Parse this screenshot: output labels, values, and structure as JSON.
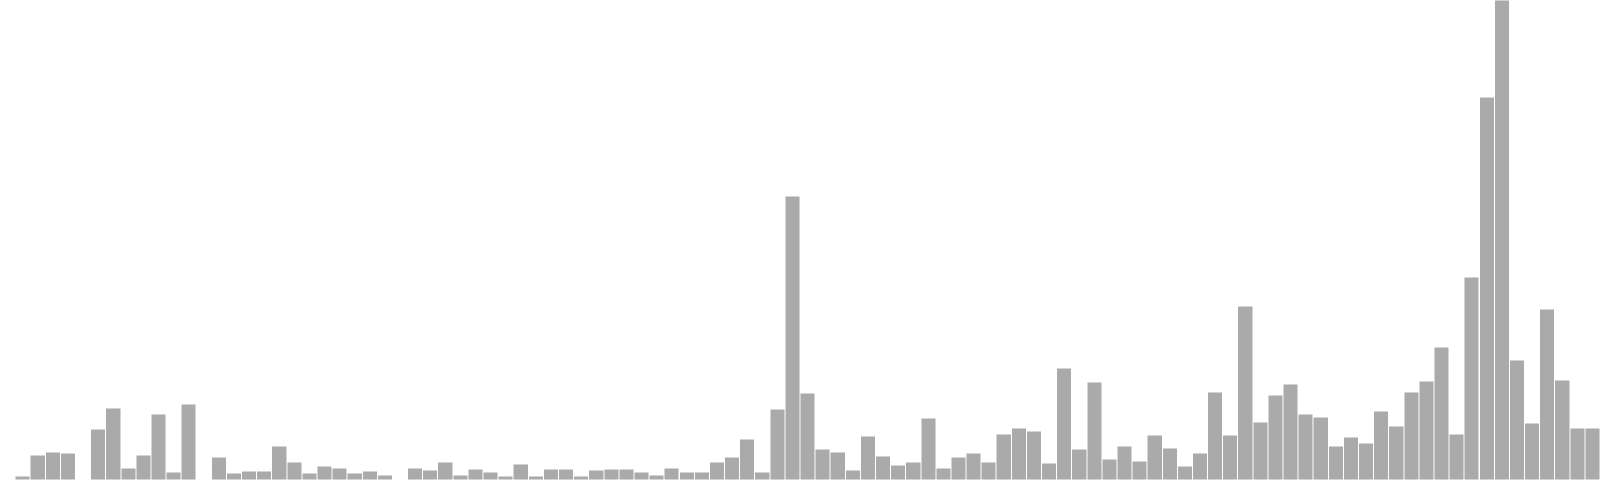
{
  "chart_data": {
    "type": "bar",
    "title": "",
    "xlabel": "",
    "ylabel": "",
    "axes_visible": false,
    "grid": false,
    "legend": "none",
    "bar_color": "#aaaaaa",
    "bar_edge_color": "#ffffff",
    "ylim": [
      0,
      480
    ],
    "series": [
      {
        "name": "",
        "values": [
          1,
          4,
          25,
          28,
          27,
          0,
          51,
          72,
          12,
          25,
          66,
          8,
          76,
          0,
          23,
          7,
          9,
          9,
          34,
          18,
          7,
          14,
          12,
          7,
          9,
          5,
          0,
          12,
          10,
          18,
          5,
          11,
          8,
          4,
          16,
          4,
          11,
          11,
          4,
          10,
          11,
          11,
          8,
          5,
          12,
          8,
          8,
          18,
          23,
          41,
          8,
          71,
          284,
          87,
          31,
          28,
          10,
          44,
          24,
          15,
          18,
          62,
          12,
          23,
          27,
          18,
          46,
          52,
          49,
          17,
          112,
          31,
          98,
          21,
          34,
          19,
          45,
          32,
          14,
          27,
          88,
          45,
          174,
          58,
          85,
          96,
          66,
          63,
          34,
          43,
          37,
          69,
          54,
          88,
          99,
          133,
          46,
          203,
          383,
          480,
          120,
          57,
          171,
          100,
          52,
          52
        ]
      }
    ]
  }
}
